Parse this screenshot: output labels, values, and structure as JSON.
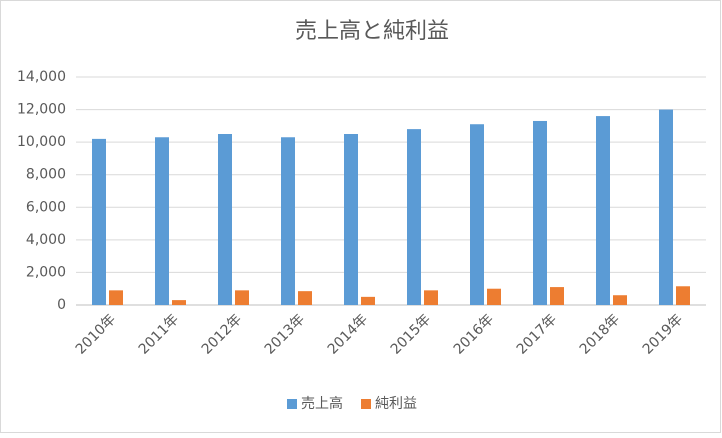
{
  "chart_data": {
    "type": "bar",
    "title": "売上高と純利益",
    "categories": [
      "2010年",
      "2011年",
      "2012年",
      "2013年",
      "2014年",
      "2015年",
      "2016年",
      "2017年",
      "2018年",
      "2019年"
    ],
    "series": [
      {
        "name": "売上高",
        "color": "#5b9bd5",
        "values": [
          10200,
          10300,
          10500,
          10300,
          10500,
          10800,
          11100,
          11300,
          11600,
          12000
        ]
      },
      {
        "name": "純利益",
        "color": "#ed7d31",
        "values": [
          900,
          300,
          900,
          850,
          500,
          900,
          1000,
          1100,
          600,
          1150
        ]
      }
    ],
    "ylim": [
      0,
      14000
    ],
    "yticks": [
      0,
      {
        "value": 2000,
        "label": "2,000"
      },
      {
        "value": 4000,
        "label": "4,000"
      },
      {
        "value": 6000,
        "label": "6,000"
      },
      {
        "value": 8000,
        "label": "8,000"
      },
      {
        "value": 10000,
        "label": "10,000"
      },
      {
        "value": 12000,
        "label": "12,000"
      },
      {
        "value": 14000,
        "label": "14,000"
      }
    ],
    "grid": true,
    "legend": "bottom"
  }
}
